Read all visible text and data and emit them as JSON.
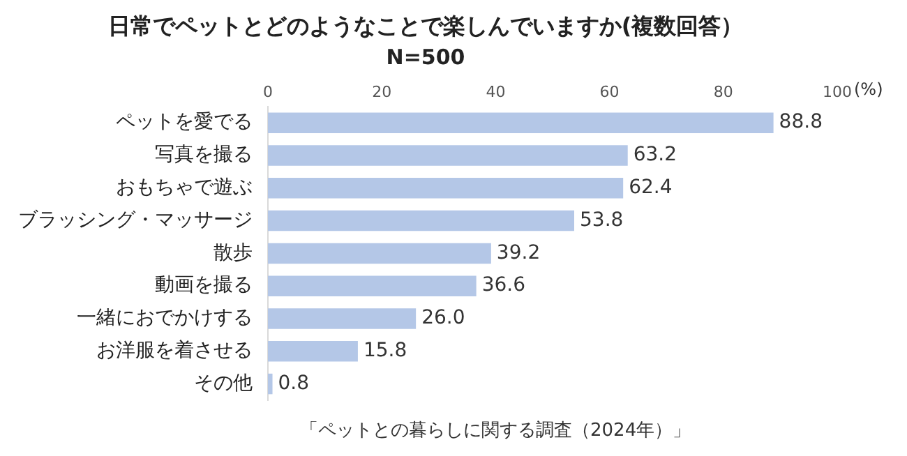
{
  "chart_data": {
    "type": "bar",
    "orientation": "horizontal",
    "title": "日常でペットとどのようなことで楽しんでいますか(複数回答）",
    "subtitle": "N=500",
    "xlabel": "(%)",
    "categories": [
      "ペットを愛でる",
      "写真を撮る",
      "おもちゃで遊ぶ",
      "ブラッシング・マッサージ",
      "散歩",
      "動画を撮る",
      "一緒におでかけする",
      "お洋服を着させる",
      "その他"
    ],
    "values": [
      88.8,
      63.2,
      62.4,
      53.8,
      39.2,
      36.6,
      26.0,
      15.8,
      0.8
    ],
    "value_labels": [
      "88.8",
      "63.2",
      "62.4",
      "53.8",
      "39.2",
      "36.6",
      "26.0",
      "15.8",
      "0.8"
    ],
    "color": "#b4c7e7",
    "xlim": [
      0,
      100
    ],
    "xticks": [
      0,
      20,
      40,
      60,
      80,
      100
    ],
    "grid": false,
    "legend": false,
    "annotations": [
      "「ペットとの暮らしに関する調査（2024年）」"
    ]
  }
}
